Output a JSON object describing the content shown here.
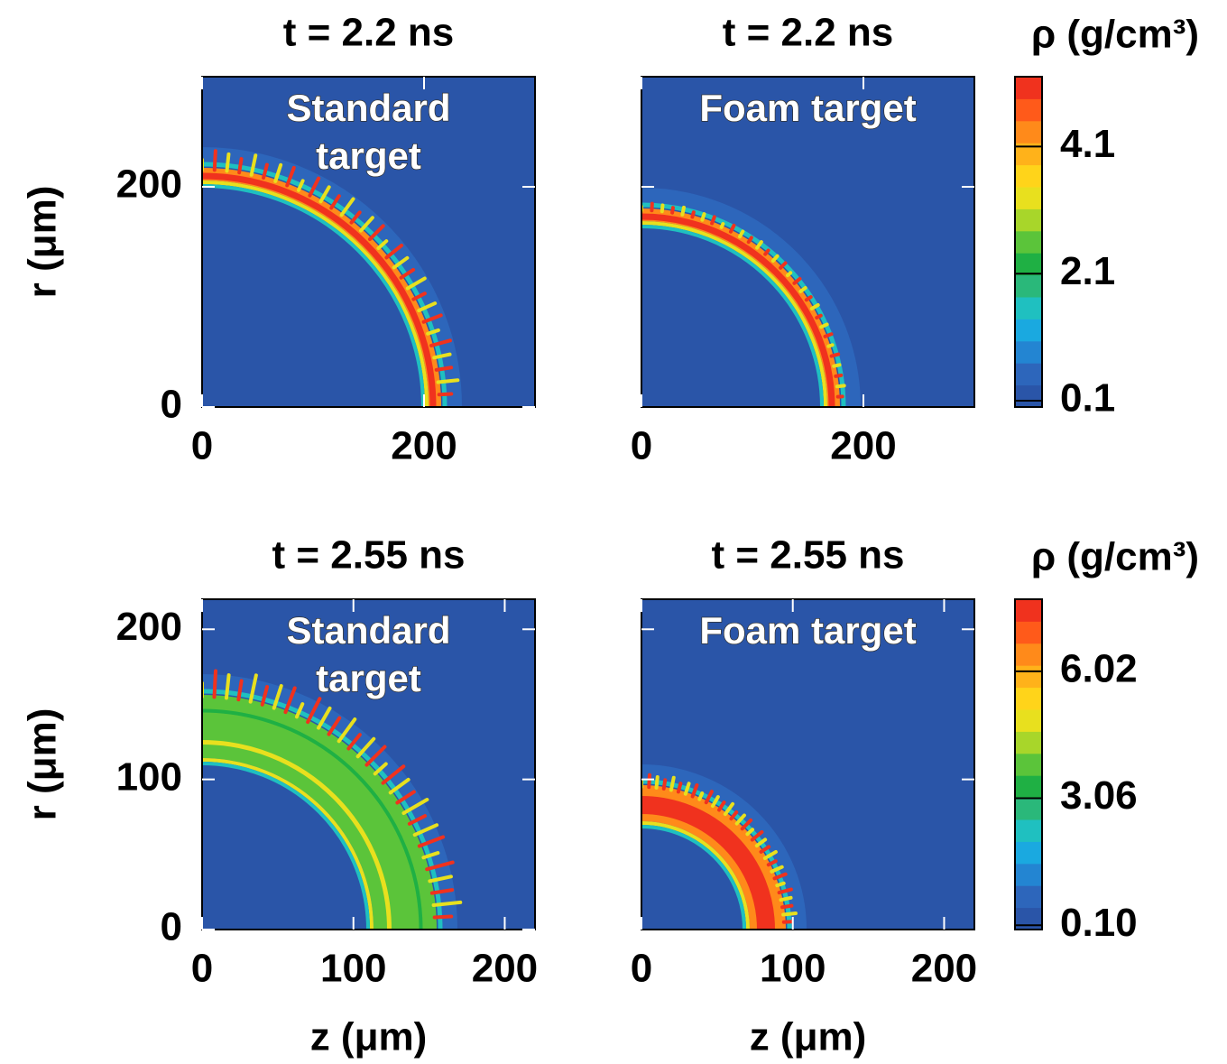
{
  "chart_data": [
    {
      "type": "image",
      "title": "t = 2.2 ns",
      "annotation": [
        "Standard",
        "target"
      ],
      "ylabel": "r (μm)",
      "xlim": [
        0,
        300
      ],
      "ylim": [
        0,
        300
      ],
      "xticks": [
        0,
        200
      ],
      "yticks": [
        0,
        200
      ],
      "ytick_labels": true
    },
    {
      "type": "image",
      "title": "t = 2.2 ns",
      "annotation": [
        "Foam target"
      ],
      "xlim": [
        0,
        300
      ],
      "ylim": [
        0,
        300
      ],
      "xticks": [
        0,
        200
      ],
      "yticks": [
        200
      ],
      "ytick_labels": false
    },
    {
      "type": "colorbar",
      "label": "ρ (g/cm³)",
      "clim": [
        0,
        5.2
      ],
      "ticks": [
        0.1,
        2.1,
        4.1
      ],
      "colors": [
        "#2a55a8",
        "#2d66bb",
        "#2385d2",
        "#1aa9e0",
        "#1fc0c0",
        "#2ab87a",
        "#1fb044",
        "#5bc43a",
        "#a8d62a",
        "#e8e01e",
        "#ffd41a",
        "#ffb21a",
        "#ff8a1a",
        "#ff5a1a",
        "#f0321e"
      ]
    },
    {
      "type": "image",
      "title": "t = 2.55 ns",
      "annotation": [
        "Standard",
        "target"
      ],
      "ylabel": "r (μm)",
      "xlabel": "z (μm)",
      "xlim": [
        0,
        220
      ],
      "ylim": [
        0,
        220
      ],
      "xticks": [
        0,
        100,
        200
      ],
      "yticks": [
        0,
        100,
        200
      ],
      "ytick_labels": true
    },
    {
      "type": "image",
      "title": "t = 2.55 ns",
      "annotation": [
        "Foam target"
      ],
      "xlabel": "z (μm)",
      "xlim": [
        0,
        220
      ],
      "ylim": [
        0,
        220
      ],
      "xticks": [
        0,
        100,
        200
      ],
      "yticks": [
        100,
        200
      ],
      "ytick_labels": false
    },
    {
      "type": "colorbar",
      "label": "ρ (g/cm³)",
      "clim": [
        0,
        7.7
      ],
      "ticks": [
        {
          "value": 0.1,
          "label": "0.10"
        },
        3.06,
        6.02
      ],
      "colors": [
        "#2a55a8",
        "#2d66bb",
        "#2385d2",
        "#1aa9e0",
        "#1fc0c0",
        "#2ab87a",
        "#1fb044",
        "#5bc43a",
        "#a8d62a",
        "#e8e01e",
        "#ffd41a",
        "#ffb21a",
        "#ff8a1a",
        "#ff5a1a",
        "#f0321e"
      ]
    }
  ]
}
